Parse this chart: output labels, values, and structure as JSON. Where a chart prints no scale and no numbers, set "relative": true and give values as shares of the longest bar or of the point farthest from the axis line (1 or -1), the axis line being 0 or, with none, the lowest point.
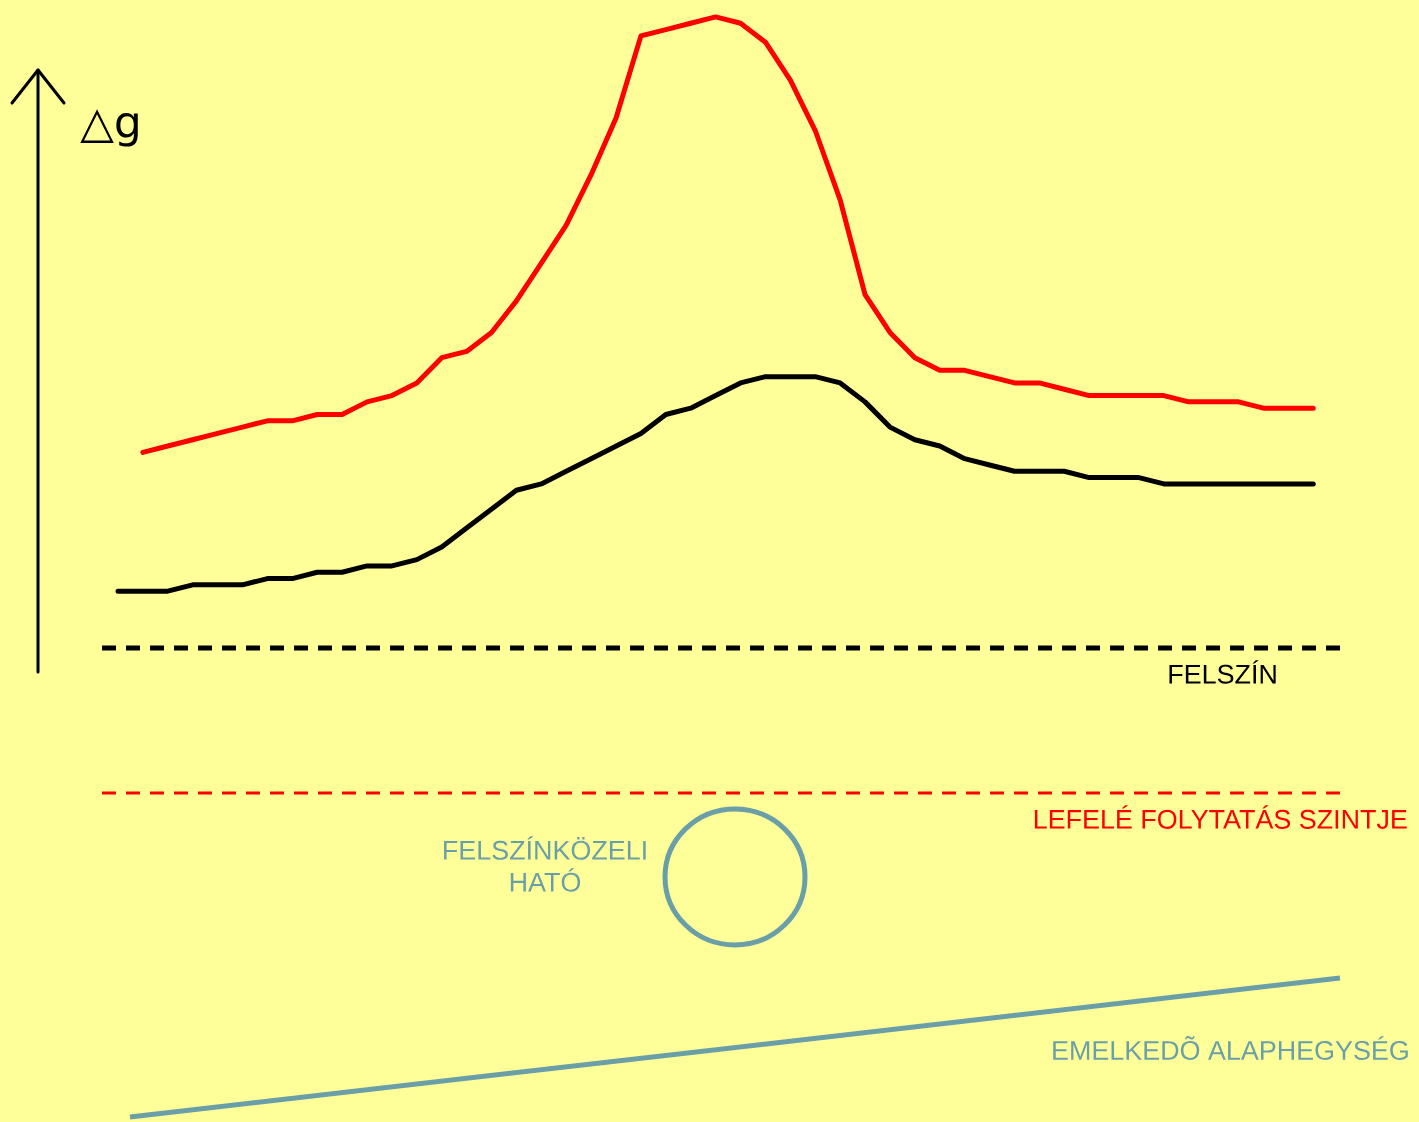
{
  "chart_data": {
    "type": "line",
    "relative": true,
    "ylabel": "△g",
    "categories": [
      null,
      null,
      null,
      null,
      null,
      null,
      null,
      null,
      null,
      null,
      null,
      null,
      null,
      null,
      null,
      null,
      null,
      null,
      null,
      null,
      null,
      null,
      null,
      null,
      null,
      null,
      null,
      null,
      null,
      null,
      null,
      null,
      null,
      null,
      null,
      null,
      null,
      null,
      null,
      null,
      null,
      null,
      null,
      null,
      null,
      null,
      null,
      null,
      null
    ],
    "series": [
      {
        "color": "#ff0000",
        "values": [
          null,
          0.31,
          0.32,
          0.33,
          0.34,
          0.35,
          0.36,
          0.36,
          0.37,
          0.37,
          0.39,
          0.4,
          0.42,
          0.46,
          0.47,
          0.5,
          0.55,
          0.61,
          0.67,
          0.75,
          0.84,
          0.97,
          0.98,
          0.99,
          1,
          0.99,
          0.96,
          0.9,
          0.82,
          0.71,
          0.56,
          0.5,
          0.46,
          0.44,
          0.44,
          0.43,
          0.42,
          0.42,
          0.41,
          0.4,
          0.4,
          0.4,
          0.4,
          0.39,
          0.39,
          0.39,
          0.38,
          0.38,
          0.38
        ]
      },
      {
        "color": "#000000",
        "values": [
          0.09,
          0.09,
          0.09,
          0.1,
          0.1,
          0.1,
          0.11,
          0.11,
          0.12,
          0.12,
          0.13,
          0.13,
          0.14,
          0.16,
          0.19,
          0.22,
          0.25,
          0.26,
          0.28,
          0.3,
          0.32,
          0.34,
          0.37,
          0.38,
          0.4,
          0.42,
          0.43,
          0.43,
          0.43,
          0.42,
          0.39,
          0.35,
          0.33,
          0.32,
          0.3,
          0.29,
          0.28,
          0.28,
          0.28,
          0.27,
          0.27,
          0.27,
          0.26,
          0.26,
          0.26,
          0.26,
          0.26,
          0.26,
          0.26
        ]
      }
    ],
    "ref_lines": [
      {
        "axis": "y",
        "value": 0,
        "label": "FELSZÍN",
        "color": "#000000",
        "line_style": "dashed"
      },
      {
        "axis": "y",
        "value": -0.23,
        "label": "LEFELÉ FOLYTATÁS SZINTJE",
        "color": "#ff0000",
        "line_style": "dashed"
      }
    ],
    "annotations": [
      "FELSZÍNKÖZELI HATÓ",
      "EMELKEDÕ ALAPHEGYSÉG"
    ]
  }
}
